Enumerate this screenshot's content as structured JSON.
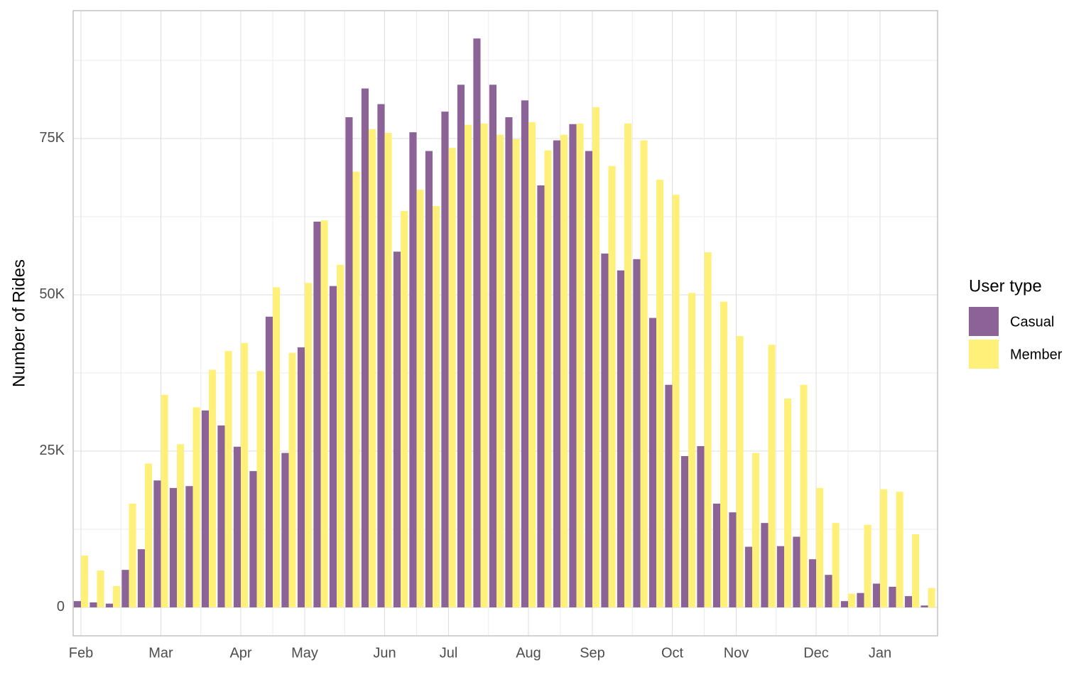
{
  "chart_data": {
    "type": "bar",
    "ylabel": "Number of Rides",
    "legend_title": "User type",
    "legend": "right",
    "grid": true,
    "categories": [
      "Feb",
      null,
      null,
      null,
      null,
      "Mar",
      null,
      null,
      null,
      null,
      "Apr",
      null,
      null,
      null,
      "May",
      null,
      null,
      null,
      null,
      "Jun",
      null,
      null,
      null,
      "Jul",
      null,
      null,
      null,
      null,
      "Aug",
      null,
      null,
      null,
      "Sep",
      null,
      null,
      null,
      null,
      "Oct",
      null,
      null,
      null,
      "Nov",
      null,
      null,
      null,
      null,
      "Dec",
      null,
      null,
      null,
      "Jan",
      null,
      null,
      null
    ],
    "series": [
      {
        "name": "Casual",
        "color": "#8b6397",
        "values": [
          1000,
          800,
          600,
          6000,
          9300,
          20300,
          19100,
          19400,
          31500,
          29100,
          25700,
          21800,
          46500,
          24700,
          41600,
          61700,
          51400,
          78400,
          83000,
          80500,
          56900,
          76000,
          73000,
          79300,
          83600,
          91000,
          83600,
          78400,
          81100,
          67500,
          74700,
          77300,
          73000,
          56600,
          53900,
          55700,
          46300,
          35600,
          24200,
          25800,
          16600,
          15200,
          9700,
          13500,
          9800,
          11300,
          7700,
          5200,
          1000,
          2300,
          3800,
          3300,
          1800,
          300
        ]
      },
      {
        "name": "Member",
        "color": "#fff07a",
        "values": [
          8300,
          5900,
          3400,
          16600,
          23000,
          34000,
          26100,
          32000,
          38000,
          41000,
          42300,
          37800,
          51200,
          40700,
          51900,
          61900,
          54800,
          69700,
          76500,
          75900,
          63400,
          66800,
          64200,
          73500,
          77200,
          77400,
          75600,
          74900,
          77600,
          73100,
          75600,
          77400,
          80000,
          70600,
          77400,
          74700,
          68400,
          66000,
          50300,
          56800,
          48900,
          43400,
          24700,
          42000,
          33400,
          35600,
          19100,
          13500,
          2200,
          13200,
          18900,
          18500,
          11700,
          3100
        ]
      }
    ],
    "ylim": [
      -4550,
      95450
    ],
    "yticks": [
      0,
      {
        "value": 25000,
        "label": "25K"
      },
      {
        "value": 50000,
        "label": "50K"
      },
      {
        "value": 75000,
        "label": "75K"
      }
    ],
    "yminor": [
      12500,
      37500,
      62500,
      87500
    ]
  }
}
